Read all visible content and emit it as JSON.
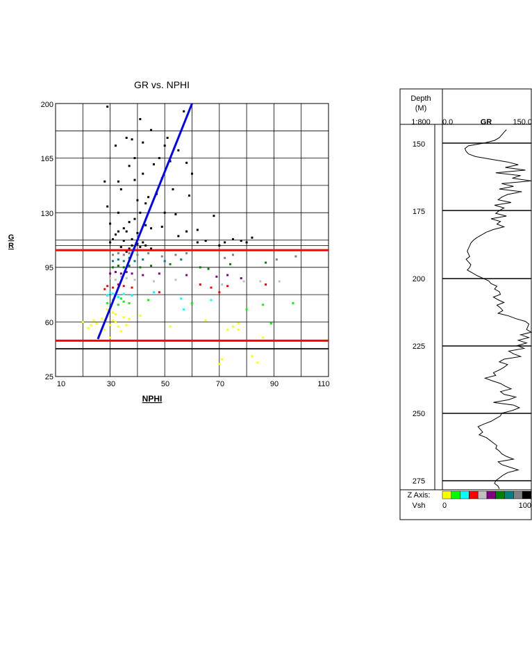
{
  "crossplot": {
    "title": "GR vs. NPHI",
    "xlabel": "NPHI",
    "ylabel": "GR",
    "xlim": [
      10,
      110
    ],
    "ylim": [
      25,
      200
    ],
    "xticks": [
      "10",
      "30",
      "50",
      "70",
      "90",
      "110"
    ],
    "yticks": [
      "25",
      "60",
      "95",
      "130",
      "165",
      "200"
    ],
    "grid": true
  },
  "chart_data": [
    {
      "type": "scatter",
      "title": "GR vs. NPHI",
      "xlabel": "NPHI",
      "ylabel": "GR",
      "xlim": [
        10,
        110
      ],
      "ylim": [
        25,
        200
      ],
      "grid": true,
      "color_by": "Vsh",
      "series": [
        {
          "color": "#ffff00",
          "points": [
            [
              26,
              52
            ],
            [
              28,
              55
            ],
            [
              30,
              58
            ],
            [
              32,
              60
            ],
            [
              27,
              62
            ],
            [
              29,
              64
            ],
            [
              31,
              66
            ],
            [
              33,
              57
            ],
            [
              25,
              59
            ],
            [
              22,
              56
            ],
            [
              24,
              61
            ],
            [
              35,
              63
            ],
            [
              34,
              54
            ],
            [
              30,
              50
            ],
            [
              29,
              68
            ],
            [
              31,
              61
            ],
            [
              36,
              58
            ],
            [
              23,
              58
            ],
            [
              20,
              60
            ],
            [
              32,
              65
            ],
            [
              28,
              61
            ],
            [
              37,
              62
            ],
            [
              41,
              64
            ],
            [
              52,
              57
            ],
            [
              65,
              61
            ],
            [
              71,
              48
            ],
            [
              73,
              55
            ],
            [
              75,
              57
            ],
            [
              77,
              59
            ],
            [
              82,
              38
            ],
            [
              84,
              34
            ],
            [
              71,
              36
            ],
            [
              86,
              50
            ],
            [
              77,
              55
            ],
            [
              70,
              33
            ]
          ]
        },
        {
          "color": "#00ff00",
          "points": [
            [
              29,
              72
            ],
            [
              31,
              74
            ],
            [
              33,
              71
            ],
            [
              35,
              73
            ],
            [
              30,
              70
            ],
            [
              34,
              75
            ],
            [
              37,
              72
            ],
            [
              44,
              74
            ],
            [
              60,
              72
            ],
            [
              80,
              68
            ],
            [
              86,
              71
            ],
            [
              97,
              72
            ],
            [
              89,
              59
            ]
          ]
        },
        {
          "color": "#00ffff",
          "points": [
            [
              29,
              77
            ],
            [
              31,
              78
            ],
            [
              33,
              76
            ],
            [
              35,
              78
            ],
            [
              30,
              79
            ],
            [
              38,
              77
            ],
            [
              46,
              79
            ],
            [
              57,
              68
            ],
            [
              67,
              74
            ],
            [
              56,
              75
            ]
          ]
        },
        {
          "color": "#ff0000",
          "points": [
            [
              29,
              83
            ],
            [
              31,
              82
            ],
            [
              33,
              84
            ],
            [
              35,
              83
            ],
            [
              28,
              81
            ],
            [
              38,
              82
            ],
            [
              48,
              79
            ],
            [
              63,
              84
            ],
            [
              67,
              82
            ],
            [
              70,
              79
            ],
            [
              73,
              83
            ],
            [
              87,
              84
            ]
          ]
        },
        {
          "color": "#c0c0c0",
          "points": [
            [
              30,
              88
            ],
            [
              32,
              87
            ],
            [
              34,
              89
            ],
            [
              36,
              88
            ],
            [
              39,
              87
            ],
            [
              46,
              86
            ],
            [
              54,
              87
            ],
            [
              79,
              86
            ],
            [
              85,
              86
            ],
            [
              92,
              86
            ],
            [
              71,
              84
            ]
          ]
        },
        {
          "color": "#800080",
          "points": [
            [
              30,
              91
            ],
            [
              32,
              92
            ],
            [
              34,
              91
            ],
            [
              36,
              92
            ],
            [
              38,
              91
            ],
            [
              42,
              90
            ],
            [
              48,
              91
            ],
            [
              58,
              90
            ],
            [
              69,
              89
            ],
            [
              73,
              90
            ],
            [
              78,
              88
            ]
          ]
        },
        {
          "color": "#008000",
          "points": [
            [
              31,
              95
            ],
            [
              33,
              96
            ],
            [
              35,
              95
            ],
            [
              37,
              96
            ],
            [
              41,
              95
            ],
            [
              45,
              96
            ],
            [
              52,
              97
            ],
            [
              63,
              95
            ],
            [
              74,
              97
            ],
            [
              87,
              98
            ],
            [
              66,
              94
            ]
          ]
        },
        {
          "color": "#008080",
          "points": [
            [
              31,
              99
            ],
            [
              33,
              100
            ],
            [
              35,
              99
            ],
            [
              37,
              101
            ],
            [
              39,
              99
            ],
            [
              42,
              100
            ],
            [
              50,
              99
            ],
            [
              56,
              100
            ]
          ]
        },
        {
          "color": "#808080",
          "points": [
            [
              31,
              103
            ],
            [
              33,
              104
            ],
            [
              35,
              103
            ],
            [
              37,
              104
            ],
            [
              40,
              103
            ],
            [
              44,
              104
            ],
            [
              49,
              102
            ],
            [
              54,
              103
            ],
            [
              58,
              104
            ],
            [
              72,
              101
            ],
            [
              75,
              103
            ],
            [
              91,
              100
            ],
            [
              98,
              102
            ]
          ]
        },
        {
          "color": "#000000",
          "points": [
            [
              29,
              198
            ],
            [
              32,
              173
            ],
            [
              33,
              150
            ],
            [
              34,
              145
            ],
            [
              35,
              120
            ],
            [
              36,
              118
            ],
            [
              37,
              124
            ],
            [
              38,
              113
            ],
            [
              39,
              126
            ],
            [
              40,
              117
            ],
            [
              41,
              130
            ],
            [
              42,
              111
            ],
            [
              43,
              122
            ],
            [
              44,
              140
            ],
            [
              45,
              120
            ],
            [
              46,
              161
            ],
            [
              47,
              143
            ],
            [
              48,
              165
            ],
            [
              49,
              152
            ],
            [
              50,
              173
            ],
            [
              51,
              178
            ],
            [
              52,
              163
            ],
            [
              53,
              145
            ],
            [
              54,
              129
            ],
            [
              55,
              170
            ],
            [
              57,
              195
            ],
            [
              58,
              162
            ],
            [
              59,
              141
            ],
            [
              60,
              155
            ],
            [
              62,
              119
            ],
            [
              33,
              130
            ],
            [
              34,
              108
            ],
            [
              35,
              112
            ],
            [
              36,
              105
            ],
            [
              37,
              107
            ],
            [
              38,
              109
            ],
            [
              39,
              106
            ],
            [
              40,
              110
            ],
            [
              41,
              108
            ],
            [
              43,
              109
            ],
            [
              45,
              107
            ],
            [
              30,
              111
            ],
            [
              31,
              113
            ],
            [
              32,
              116
            ],
            [
              33,
              118
            ],
            [
              28,
              150
            ],
            [
              29,
              134
            ],
            [
              30,
              123
            ],
            [
              38,
              177
            ],
            [
              39,
              151
            ],
            [
              40,
              138
            ],
            [
              41,
              190
            ],
            [
              42,
              155
            ],
            [
              43,
              136
            ],
            [
              45,
              183
            ],
            [
              47,
              142
            ],
            [
              49,
              121
            ],
            [
              55,
              115
            ],
            [
              58,
              118
            ],
            [
              62,
              111
            ],
            [
              65,
              112
            ],
            [
              68,
              128
            ],
            [
              70,
              109
            ],
            [
              72,
              111
            ],
            [
              75,
              113
            ],
            [
              78,
              112
            ],
            [
              80,
              111
            ],
            [
              82,
              114
            ],
            [
              36,
              178
            ],
            [
              37,
              160
            ],
            [
              39,
              165
            ],
            [
              42,
              175
            ],
            [
              50,
              130
            ]
          ]
        }
      ]
    },
    {
      "type": "line",
      "title": "GR",
      "xlabel": "GR",
      "ylabel": "Depth",
      "xlim": [
        0,
        150
      ],
      "ylim": [
        145,
        278
      ],
      "x": [
        145,
        146,
        147,
        148,
        149,
        150,
        151,
        152,
        153,
        154,
        155,
        156,
        157,
        158,
        159,
        160,
        161,
        162,
        163,
        164,
        165,
        166,
        167,
        168,
        169,
        170,
        171,
        172,
        173,
        174,
        175,
        176,
        177,
        178,
        179,
        180,
        181,
        182,
        183,
        184,
        185,
        186,
        187,
        188,
        189,
        190,
        191,
        192,
        193,
        194,
        195,
        196,
        197,
        198,
        199,
        200,
        201,
        202,
        203,
        204,
        205,
        206,
        207,
        208,
        209,
        210,
        211,
        212,
        213,
        214,
        215,
        216,
        217,
        218,
        219,
        220,
        221,
        222,
        223,
        224,
        225,
        226,
        227,
        228,
        229,
        230,
        231,
        232,
        233,
        234,
        235,
        236,
        237,
        238,
        239,
        240,
        241,
        242,
        243,
        244,
        245,
        246,
        247,
        248,
        249,
        250,
        251,
        252,
        253,
        254,
        255,
        256,
        257,
        258,
        259,
        260,
        261,
        262,
        263,
        264,
        265,
        266,
        267,
        268,
        269,
        270,
        271,
        272,
        273,
        274,
        275,
        276,
        277,
        278
      ],
      "values": [
        108,
        104,
        100,
        96,
        88,
        70,
        44,
        38,
        40,
        44,
        56,
        82,
        110,
        128,
        106,
        140,
        90,
        132,
        118,
        150,
        100,
        120,
        96,
        134,
        110,
        100,
        94,
        116,
        88,
        104,
        96,
        90,
        108,
        82,
        98,
        92,
        104,
        86,
        74,
        66,
        58,
        52,
        48,
        46,
        44,
        42,
        44,
        46,
        40,
        44,
        48,
        46,
        42,
        50,
        58,
        68,
        78,
        82,
        92,
        88,
        96,
        98,
        86,
        94,
        104,
        92,
        98,
        102,
        94,
        112,
        124,
        140,
        146,
        144,
        142,
        150,
        132,
        146,
        128,
        142,
        126,
        138,
        112,
        120,
        132,
        104,
        96,
        110,
        104,
        96,
        86,
        90,
        72,
        84,
        98,
        106,
        116,
        98,
        104,
        124,
        112,
        86,
        120,
        130,
        118,
        100,
        98,
        90,
        82,
        70,
        60,
        64,
        68,
        62,
        74,
        80,
        86,
        92,
        90,
        96,
        100,
        108,
        120,
        94,
        100,
        114,
        128,
        110,
        102,
        96,
        90,
        88,
        94,
        96
      ]
    }
  ],
  "log_panel": {
    "header_depth": "Depth",
    "header_unit": "(M)",
    "scale": "1:800",
    "track_min": "0.0",
    "track_name": "GR",
    "track_max": "150.0",
    "depth_labels": [
      "150",
      "175",
      "200",
      "225",
      "250",
      "275"
    ],
    "z_axis_label": "Z Axis:",
    "z_var": "Vsh",
    "z_min": "0",
    "z_max": "100",
    "z_colors": [
      "#ffff00",
      "#00ff00",
      "#00ffff",
      "#ff0000",
      "#c0c0c0",
      "#800080",
      "#008000",
      "#008080",
      "#808080",
      "#000000"
    ]
  }
}
